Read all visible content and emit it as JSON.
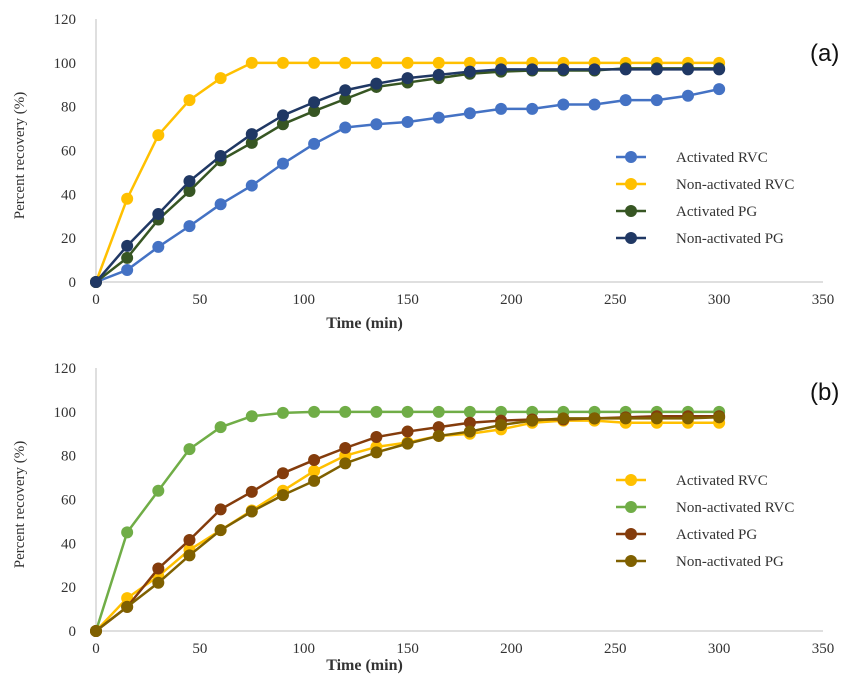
{
  "chart_data": [
    {
      "type": "line",
      "panel_label": "(a)",
      "xlabel": "Time (min)",
      "ylabel": "Percent recovery (%)",
      "xlim": [
        0,
        350
      ],
      "ylim": [
        0,
        120
      ],
      "x_ticks": [
        0,
        50,
        100,
        150,
        200,
        250,
        300,
        350
      ],
      "y_ticks": [
        0,
        20,
        40,
        60,
        80,
        100,
        120
      ],
      "grid": false,
      "legend_position": "right",
      "x": [
        0,
        15,
        30,
        45,
        60,
        75,
        90,
        105,
        120,
        135,
        150,
        165,
        180,
        195,
        210,
        225,
        240,
        255,
        270,
        285,
        300
      ],
      "series": [
        {
          "name": "Activated RVC",
          "color": "#4472C4",
          "values": [
            0,
            5.5,
            16,
            25.5,
            35.5,
            44,
            54,
            63,
            70.5,
            72,
            73,
            75,
            77,
            79,
            79,
            81,
            81,
            83,
            83,
            85,
            88
          ]
        },
        {
          "name": "Non-activated RVC",
          "color": "#FFC000",
          "values": [
            0,
            38,
            67,
            83,
            93,
            100,
            100,
            100,
            100,
            100,
            100,
            100,
            100,
            100,
            100,
            100,
            100,
            100,
            100,
            100,
            100
          ]
        },
        {
          "name": "Activated PG",
          "color": "#375623",
          "values": [
            0,
            11,
            28.5,
            41.5,
            55.5,
            63.5,
            72,
            78,
            83.5,
            89,
            91,
            93,
            95,
            96,
            96.5,
            96.5,
            96.5,
            97.5,
            97.5,
            97.5,
            97.5
          ]
        },
        {
          "name": "Non-activated PG",
          "color": "#203864",
          "values": [
            0,
            16.5,
            31,
            46,
            57.5,
            67.5,
            76,
            82,
            87.5,
            90.5,
            93,
            94.5,
            96,
            97,
            97,
            97,
            97,
            97,
            97,
            97,
            97
          ]
        }
      ]
    },
    {
      "type": "line",
      "panel_label": "(b)",
      "xlabel": "Time (min)",
      "ylabel": "Percent recovery (%)",
      "xlim": [
        0,
        350
      ],
      "ylim": [
        0,
        120
      ],
      "x_ticks": [
        0,
        50,
        100,
        150,
        200,
        250,
        300,
        350
      ],
      "y_ticks": [
        0,
        20,
        40,
        60,
        80,
        100,
        120
      ],
      "grid": false,
      "legend_position": "right",
      "x": [
        0,
        15,
        30,
        45,
        60,
        75,
        90,
        105,
        120,
        135,
        150,
        165,
        180,
        195,
        210,
        225,
        240,
        255,
        270,
        285,
        300
      ],
      "series": [
        {
          "name": "Activated RVC",
          "color": "#FFC000",
          "values": [
            0,
            15,
            25,
            37,
            46,
            55,
            64,
            73,
            80,
            84,
            86,
            89,
            90,
            92,
            95,
            96,
            96,
            95,
            95,
            95,
            95
          ]
        },
        {
          "name": "Non-activated RVC",
          "color": "#70AD47",
          "values": [
            0,
            45,
            64,
            83,
            93,
            98,
            99.5,
            100,
            100,
            100,
            100,
            100,
            100,
            100,
            100,
            100,
            100,
            100,
            100,
            100,
            100
          ]
        },
        {
          "name": "Activated PG",
          "color": "#843C0C",
          "values": [
            0,
            11,
            28.5,
            41.5,
            55.5,
            63.5,
            72,
            78,
            83.5,
            88.5,
            91,
            93,
            95,
            96,
            96.5,
            96.5,
            97,
            97.5,
            98,
            98,
            98
          ]
        },
        {
          "name": "Non-activated PG",
          "color": "#7F6000",
          "values": [
            0,
            11,
            22,
            34.5,
            46,
            54.5,
            62,
            68.5,
            76.5,
            81.5,
            85.5,
            89,
            91,
            94,
            96,
            97,
            97,
            97,
            97,
            97,
            97.5
          ]
        }
      ]
    }
  ]
}
